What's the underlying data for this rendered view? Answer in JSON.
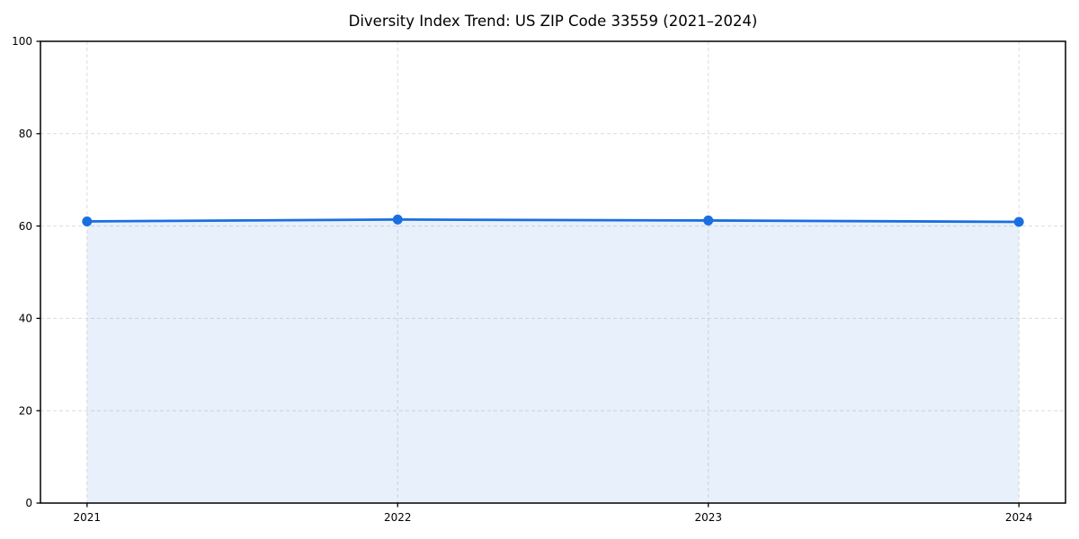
{
  "figure": {
    "background": "#ffffff"
  },
  "chart_data": {
    "type": "line",
    "title": "Diversity Index Trend: US ZIP Code 33559 (2021–2024)",
    "xlabel": "",
    "ylabel": "",
    "x": [
      2021,
      2022,
      2023,
      2024
    ],
    "xtick_labels": [
      "2021",
      "2022",
      "2023",
      "2024"
    ],
    "series": [
      {
        "name": "Diversity Index",
        "values": [
          61.0,
          61.4,
          61.2,
          60.9
        ]
      }
    ],
    "ylim": [
      0,
      100
    ],
    "yticks": [
      0,
      20,
      40,
      60,
      80,
      100
    ],
    "grid": true,
    "grid_style": "dashed",
    "legend_position": "none",
    "marker": "circle",
    "area_fill": true,
    "colors": {
      "line": "#1a6fe0",
      "marker": "#1a6fe0",
      "fill": "#1a6fe0",
      "fill_opacity": 0.1,
      "grid": "#dcdcdc",
      "spine": "#000000",
      "text": "#000000",
      "background": "#ffffff"
    }
  }
}
